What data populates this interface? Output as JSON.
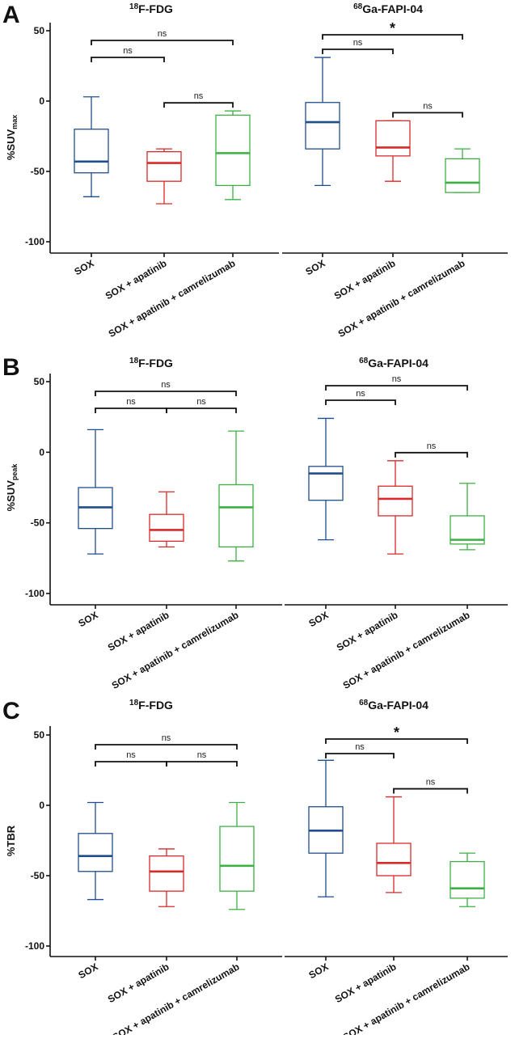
{
  "chart_data": [
    {
      "type": "box",
      "panel": "A",
      "ylabel": "%SUV",
      "ylabel_sub": "max",
      "ylim": [
        -105,
        55
      ],
      "yticks": [
        50,
        0,
        -50,
        -100
      ],
      "categories": [
        "SOX",
        "SOX + apatinib",
        "SOX + apatinib + camrelizumab"
      ],
      "groups": [
        {
          "title_sup": "18",
          "title_main": "F-FDG",
          "boxes": [
            {
              "min": -68,
              "q1": -51,
              "median": -43,
              "q3": -20,
              "max": 3,
              "color": "#1f4e8c"
            },
            {
              "min": -73,
              "q1": -57,
              "median": -44,
              "q3": -36,
              "max": -34,
              "color": "#d92a2a"
            },
            {
              "min": -70,
              "q1": -60,
              "median": -37,
              "q3": -10,
              "max": -7,
              "color": "#3cb043"
            }
          ],
          "comparisons": [
            {
              "from": 0,
              "to": 1,
              "label": "ns",
              "level": 1
            },
            {
              "from": 1,
              "to": 2,
              "label": "ns",
              "level": 0
            },
            {
              "from": 0,
              "to": 2,
              "label": "ns",
              "level": 2
            }
          ]
        },
        {
          "title_sup": "68",
          "title_main": "Ga-FAPI-04",
          "boxes": [
            {
              "min": -60,
              "q1": -34,
              "median": -15,
              "q3": -1,
              "max": 31,
              "color": "#1f4e8c"
            },
            {
              "min": -57,
              "q1": -39,
              "median": -33,
              "q3": -14,
              "max": -14,
              "color": "#d92a2a"
            },
            {
              "min": -65,
              "q1": -65,
              "median": -58,
              "q3": -41,
              "max": -34,
              "color": "#3cb043"
            }
          ],
          "comparisons": [
            {
              "from": 1,
              "to": 2,
              "label": "ns",
              "level": 0
            },
            {
              "from": 0,
              "to": 1,
              "label": "ns",
              "level": 1
            },
            {
              "from": 0,
              "to": 2,
              "label": "*",
              "level": 2
            }
          ]
        }
      ]
    },
    {
      "type": "box",
      "panel": "B",
      "ylabel": "%SUV",
      "ylabel_sub": "peak",
      "ylim": [
        -105,
        55
      ],
      "yticks": [
        50,
        0,
        -50,
        -100
      ],
      "categories": [
        "SOX",
        "SOX + apatinib",
        "SOX + apatinib + camrelizumab"
      ],
      "groups": [
        {
          "title_sup": "18",
          "title_main": "F-FDG",
          "boxes": [
            {
              "min": -72,
              "q1": -54,
              "median": -39,
              "q3": -25,
              "max": 16,
              "color": "#1f4e8c"
            },
            {
              "min": -67,
              "q1": -63,
              "median": -55,
              "q3": -44,
              "max": -28,
              "color": "#d92a2a"
            },
            {
              "min": -77,
              "q1": -67,
              "median": -39,
              "q3": -23,
              "max": 15,
              "color": "#3cb043"
            }
          ],
          "comparisons": [
            {
              "from": 0,
              "to": 1,
              "label": "ns",
              "level": 1
            },
            {
              "from": 1,
              "to": 2,
              "label": "ns",
              "level": 1
            },
            {
              "from": 0,
              "to": 2,
              "label": "ns",
              "level": 2
            }
          ]
        },
        {
          "title_sup": "68",
          "title_main": "Ga-FAPI-04",
          "boxes": [
            {
              "min": -62,
              "q1": -34,
              "median": -15,
              "q3": -10,
              "max": 24,
              "color": "#1f4e8c"
            },
            {
              "min": -72,
              "q1": -45,
              "median": -33,
              "q3": -24,
              "max": -6,
              "color": "#d92a2a"
            },
            {
              "min": -69,
              "q1": -65,
              "median": -62,
              "q3": -45,
              "max": -22,
              "color": "#3cb043"
            }
          ],
          "comparisons": [
            {
              "from": 1,
              "to": 2,
              "label": "ns",
              "level": 0
            },
            {
              "from": 0,
              "to": 1,
              "label": "ns",
              "level": 1
            },
            {
              "from": 0,
              "to": 2,
              "label": "ns",
              "level": 2
            }
          ]
        }
      ]
    },
    {
      "type": "box",
      "panel": "C",
      "ylabel": "%TBR",
      "ylabel_sub": "",
      "ylim": [
        -105,
        55
      ],
      "yticks": [
        50,
        0,
        -50,
        -100
      ],
      "categories": [
        "SOX",
        "SOX + apatinib",
        "SOX + apatinib + camrelizumab"
      ],
      "groups": [
        {
          "title_sup": "18",
          "title_main": "F-FDG",
          "boxes": [
            {
              "min": -67,
              "q1": -47,
              "median": -36,
              "q3": -20,
              "max": 2,
              "color": "#1f4e8c"
            },
            {
              "min": -72,
              "q1": -61,
              "median": -47,
              "q3": -36,
              "max": -31,
              "color": "#d92a2a"
            },
            {
              "min": -74,
              "q1": -61,
              "median": -43,
              "q3": -15,
              "max": 2,
              "color": "#3cb043"
            }
          ],
          "comparisons": [
            {
              "from": 0,
              "to": 1,
              "label": "ns",
              "level": 1
            },
            {
              "from": 1,
              "to": 2,
              "label": "ns",
              "level": 1
            },
            {
              "from": 0,
              "to": 2,
              "label": "ns",
              "level": 2
            }
          ]
        },
        {
          "title_sup": "68",
          "title_main": "Ga-FAPI-04",
          "boxes": [
            {
              "min": -65,
              "q1": -34,
              "median": -18,
              "q3": -1,
              "max": 32,
              "color": "#1f4e8c"
            },
            {
              "min": -62,
              "q1": -50,
              "median": -41,
              "q3": -27,
              "max": 6,
              "color": "#d92a2a"
            },
            {
              "min": -72,
              "q1": -66,
              "median": -59,
              "q3": -40,
              "max": -34,
              "color": "#3cb043"
            }
          ],
          "comparisons": [
            {
              "from": 1,
              "to": 2,
              "label": "ns",
              "level": 0
            },
            {
              "from": 0,
              "to": 1,
              "label": "ns",
              "level": 1
            },
            {
              "from": 0,
              "to": 2,
              "label": "*",
              "level": 2
            }
          ]
        }
      ]
    }
  ]
}
